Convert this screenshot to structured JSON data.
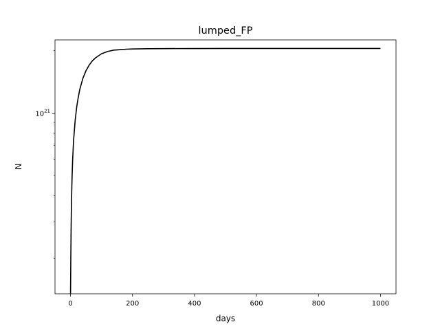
{
  "chart_data": {
    "type": "line",
    "title": "lumped_FP",
    "xlabel": "days",
    "ylabel": "N",
    "x_scale": "linear",
    "y_scale": "log",
    "xlim": [
      -50,
      1050
    ],
    "ylim": [
      1.35e+20,
      2.25e+21
    ],
    "x_ticks": [
      0,
      200,
      400,
      600,
      800,
      1000
    ],
    "x_tick_labels": [
      "0",
      "200",
      "400",
      "600",
      "800",
      "1000"
    ],
    "y_major_ticks": [
      1e+21
    ],
    "y_major_tick_labels": [
      {
        "base": "10",
        "exp": "21"
      }
    ],
    "y_minor_ticks": [
      2e+20,
      3e+20,
      4e+20,
      5e+20,
      6e+20,
      7e+20,
      8e+20,
      9e+20,
      2e+21
    ],
    "grid": false,
    "legend": "none",
    "series": [
      {
        "color": "#000000",
        "x": [
          0.1,
          0.5,
          1,
          2,
          3,
          5,
          7,
          10,
          15,
          20,
          25,
          30,
          40,
          50,
          60,
          70,
          80,
          100,
          120,
          140,
          160,
          180,
          200,
          250,
          300,
          400,
          500,
          600,
          700,
          800,
          900,
          1000
        ],
        "y": [
          1.35e+20,
          1.6e+20,
          2e+20,
          2.8e+20,
          3.6e+20,
          4.9e+20,
          6e+20,
          7.4e+20,
          9.2e+20,
          1.07e+21,
          1.19e+21,
          1.3e+21,
          1.47e+21,
          1.6e+21,
          1.7e+21,
          1.78e+21,
          1.84e+21,
          1.93e+21,
          1.98e+21,
          2.01e+21,
          2.02e+21,
          2.03e+21,
          2.035e+21,
          2.04e+21,
          2.043e+21,
          2.045e+21,
          2.046e+21,
          2.047e+21,
          2.047e+21,
          2.047e+21,
          2.047e+21,
          2.047e+21
        ]
      }
    ]
  }
}
